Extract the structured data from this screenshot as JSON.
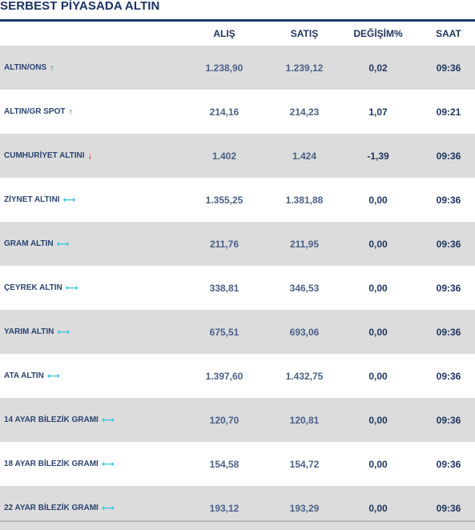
{
  "title": "SERBEST PİYASADA ALTIN",
  "headers": {
    "alis": "ALIŞ",
    "satis": "SATIŞ",
    "degisim": "DEĞİŞİM%",
    "saat": "SAAT"
  },
  "colors": {
    "title_rule": "#1d3a72",
    "row_shade": "#dcdcdc",
    "up": "#18a84a",
    "down": "#d41919",
    "flat": "#34c6df"
  },
  "rows": [
    {
      "name": "ALTIN/ONS",
      "trend": "up",
      "arrow_icon": "↑",
      "alis": "1.238,90",
      "satis": "1.239,12",
      "degisim": "0,02",
      "saat": "09:36"
    },
    {
      "name": "ALTIN/GR SPOT",
      "trend": "up",
      "arrow_icon": "↑",
      "alis": "214,16",
      "satis": "214,23",
      "degisim": "1,07",
      "saat": "09:21"
    },
    {
      "name": "CUMHURİYET ALTINI",
      "trend": "down",
      "arrow_icon": "↓",
      "alis": "1.402",
      "satis": "1.424",
      "degisim": "-1,39",
      "saat": "09:36"
    },
    {
      "name": "ZİYNET ALTINI",
      "trend": "flat",
      "arrow_icon": "⟷",
      "alis": "1.355,25",
      "satis": "1.381,88",
      "degisim": "0,00",
      "saat": "09:36"
    },
    {
      "name": "GRAM ALTIN",
      "trend": "flat",
      "arrow_icon": "⟷",
      "alis": "211,76",
      "satis": "211,95",
      "degisim": "0,00",
      "saat": "09:36"
    },
    {
      "name": "ÇEYREK ALTIN",
      "trend": "flat",
      "arrow_icon": "⟷",
      "alis": "338,81",
      "satis": "346,53",
      "degisim": "0,00",
      "saat": "09:36"
    },
    {
      "name": "YARIM ALTIN",
      "trend": "flat",
      "arrow_icon": "⟷",
      "alis": "675,51",
      "satis": "693,06",
      "degisim": "0,00",
      "saat": "09:36"
    },
    {
      "name": "ATA ALTIN",
      "trend": "flat",
      "arrow_icon": "⟷",
      "alis": "1.397,60",
      "satis": "1.432,75",
      "degisim": "0,00",
      "saat": "09:36"
    },
    {
      "name": "14 AYAR BİLEZİK GRAMI",
      "trend": "flat",
      "arrow_icon": "⟷",
      "alis": "120,70",
      "satis": "120,81",
      "degisim": "0,00",
      "saat": "09:36"
    },
    {
      "name": "18 AYAR BİLEZİK GRAMI",
      "trend": "flat",
      "arrow_icon": "⟷",
      "alis": "154,58",
      "satis": "154,72",
      "degisim": "0,00",
      "saat": "09:36"
    },
    {
      "name": "22 AYAR BİLEZİK GRAMI",
      "trend": "flat",
      "arrow_icon": "⟷",
      "alis": "193,12",
      "satis": "193,29",
      "degisim": "0,00",
      "saat": "09:36"
    }
  ]
}
